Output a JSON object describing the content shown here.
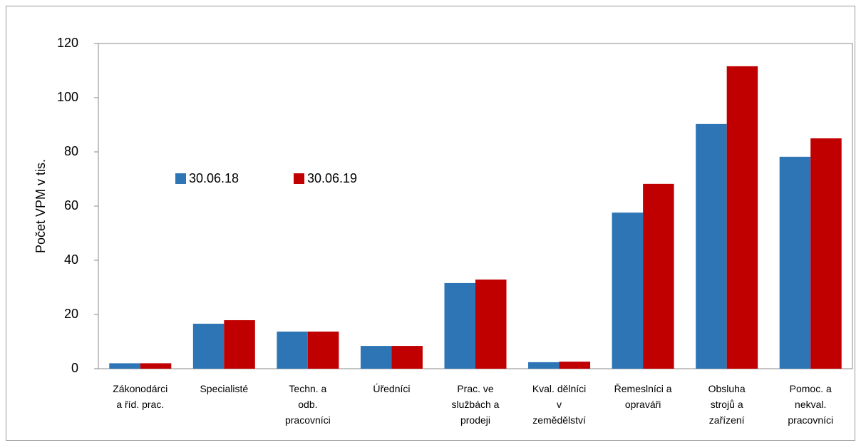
{
  "chart_data": {
    "type": "bar",
    "ylabel": "Počet VPM v tis.",
    "categories": [
      "Zákonodárci\na říd. prac.",
      "Specialisté",
      "Techn. a\nodb.\npracovníci",
      "Úředníci",
      "Prac. ve\nslužbách a\nprodeji",
      "Kval. dělníci\nv\nzemědělství",
      "Řemeslníci a\nopraváři",
      "Obsluha\nstrojů a\nzařízení",
      "Pomoc. a\nnekval.\npracovníci"
    ],
    "series": [
      {
        "name": "30.06.18",
        "color": "#2e75b6",
        "values": [
          2.0,
          16.6,
          13.7,
          8.4,
          31.6,
          2.4,
          57.6,
          90.3,
          78.2
        ]
      },
      {
        "name": "30.06.19",
        "color": "#c00000",
        "values": [
          2.0,
          17.9,
          13.7,
          8.4,
          32.9,
          2.6,
          68.2,
          111.6,
          85.0
        ]
      }
    ],
    "ylim": [
      0,
      120
    ],
    "yticks": [
      0,
      20,
      40,
      60,
      80,
      100,
      120
    ],
    "grid": false
  }
}
